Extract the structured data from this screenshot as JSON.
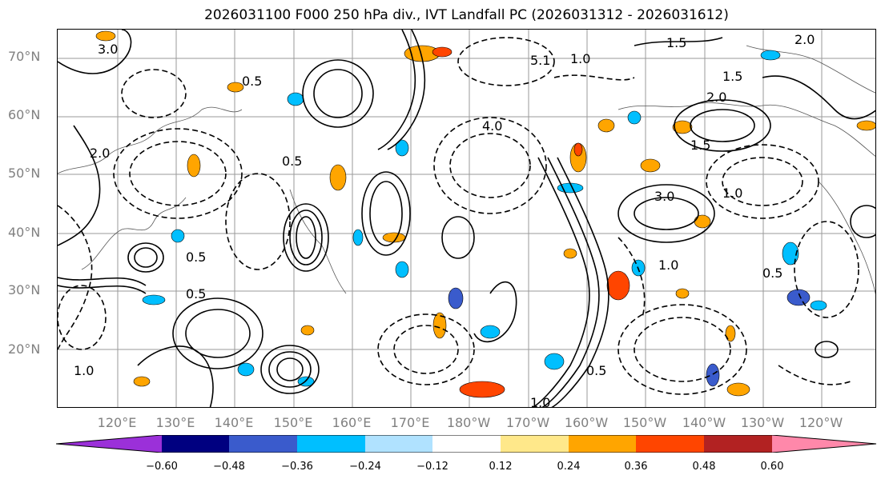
{
  "title": "2026031100 F000 250 hPa div., IVT Landfall PC (2026031312 - 2026031612)",
  "map": {
    "lat_labels": [
      "70°N",
      "60°N",
      "50°N",
      "40°N",
      "30°N",
      "20°N"
    ],
    "lon_labels": [
      "120°E",
      "130°E",
      "140°E",
      "150°E",
      "160°E",
      "170°E",
      "180°W",
      "170°W",
      "160°W",
      "150°W",
      "140°W",
      "130°W",
      "120°W"
    ],
    "contour_labels": [
      "3.0",
      "1.5",
      "0.5",
      "2.0",
      "1.5",
      "5.1",
      "1.0",
      "4.0",
      "0.5",
      "3.0",
      "1.5",
      "2.0",
      "0.5",
      "1.0",
      "0.5",
      "1.0",
      "0.5",
      "2.0",
      "1.0",
      "0.5",
      "1.0"
    ]
  },
  "colorbar": {
    "ticks": [
      "−0.60",
      "−0.48",
      "−0.36",
      "−0.24",
      "−0.12",
      "0.12",
      "0.24",
      "0.36",
      "0.48",
      "0.60"
    ],
    "colors": [
      "#9b30d9",
      "#000080",
      "#3a5bcc",
      "#00bfff",
      "#b0e2ff",
      "#ffffff",
      "#ffe88a",
      "#ffa500",
      "#ff4500",
      "#b22222",
      "#ff88aa"
    ],
    "extend": "both"
  }
}
